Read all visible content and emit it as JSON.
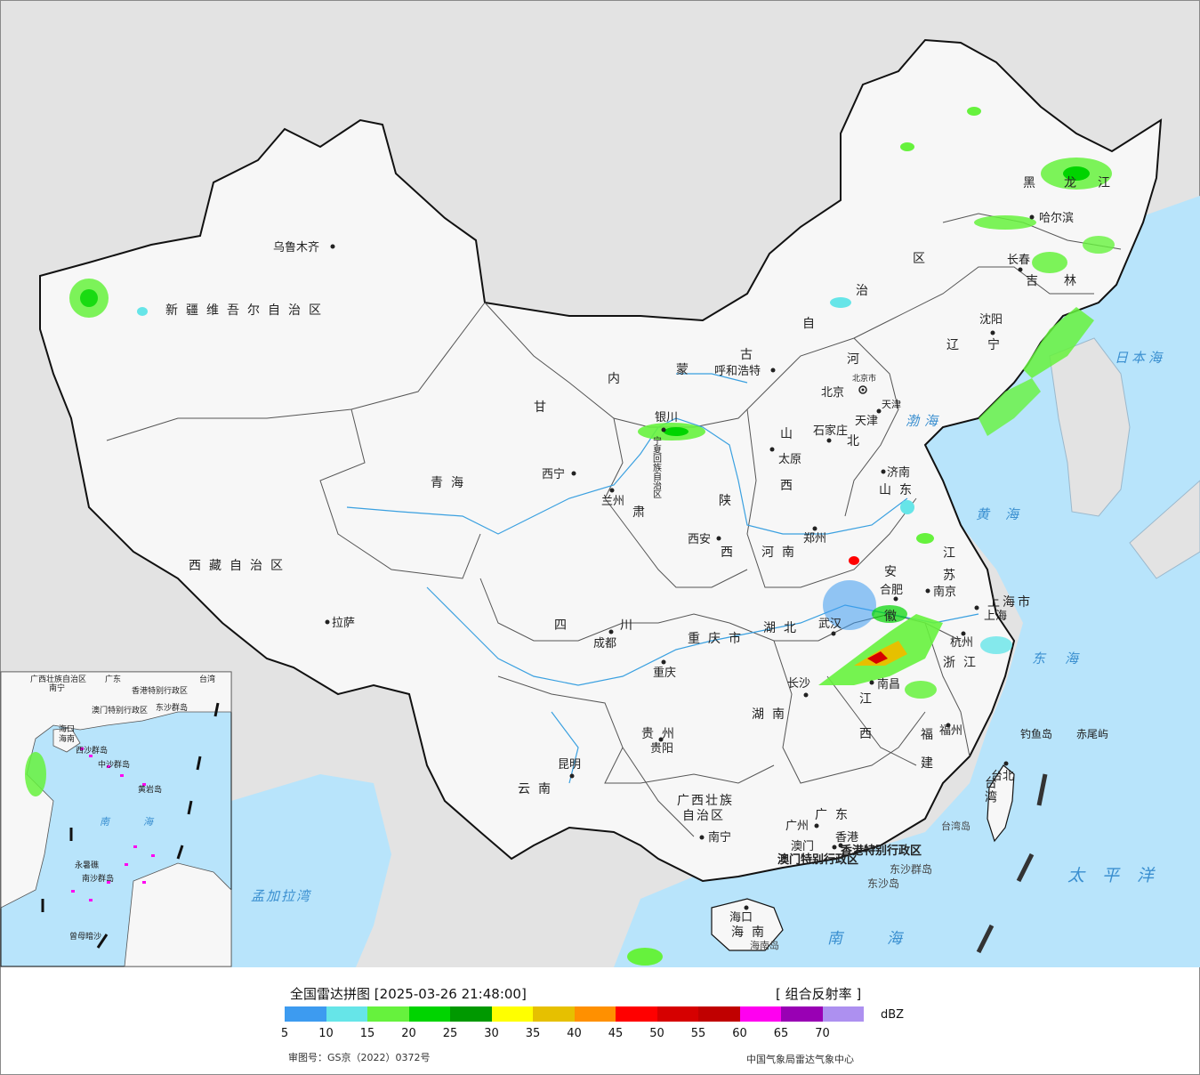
{
  "map": {
    "title": "全国雷达拼图",
    "timestamp": "[2025-03-26 21:48:00]",
    "product": "[ 组合反射率 ]",
    "unit": "dBZ",
    "review_number": "审图号：GS京（2022）0372号",
    "organization": "中国气象局雷达气象中心"
  },
  "legend": {
    "colors": [
      "#3d9bf0",
      "#66e5e8",
      "#66f23d",
      "#00d400",
      "#009900",
      "#ffff00",
      "#e6c000",
      "#ff9000",
      "#ff0000",
      "#d60000",
      "#c00000",
      "#ff00f0",
      "#9900b4",
      "#ad90f0"
    ],
    "ticks": [
      "5",
      "10",
      "15",
      "20",
      "25",
      "30",
      "35",
      "40",
      "45",
      "50",
      "55",
      "60",
      "65",
      "70"
    ]
  },
  "provinces": [
    {
      "name": "新疆维吾尔自治区"
    },
    {
      "name": "西藏自治区"
    },
    {
      "name": "青海"
    },
    {
      "name": "甘"
    },
    {
      "name": "肃"
    },
    {
      "name": "内"
    },
    {
      "name": "蒙"
    },
    {
      "name": "古"
    },
    {
      "name": "自"
    },
    {
      "name": "治"
    },
    {
      "name": "区"
    },
    {
      "name": "黑"
    },
    {
      "name": "龙"
    },
    {
      "name": "江"
    },
    {
      "name": "吉"
    },
    {
      "name": "林"
    },
    {
      "name": "辽"
    },
    {
      "name": "宁"
    },
    {
      "name": "河"
    },
    {
      "name": "北"
    },
    {
      "name": "山"
    },
    {
      "name": "西"
    },
    {
      "name": "陕"
    },
    {
      "name": "西"
    },
    {
      "name": "山东"
    },
    {
      "name": "河南"
    },
    {
      "name": "江"
    },
    {
      "name": "苏"
    },
    {
      "name": "安"
    },
    {
      "name": "徽"
    },
    {
      "name": "湖北"
    },
    {
      "name": "四"
    },
    {
      "name": "川"
    },
    {
      "name": "重庆市"
    },
    {
      "name": "湖南"
    },
    {
      "name": "江"
    },
    {
      "name": "西"
    },
    {
      "name": "浙江"
    },
    {
      "name": "福"
    },
    {
      "name": "建"
    },
    {
      "name": "贵州"
    },
    {
      "name": "云南"
    },
    {
      "name": "广西壮族"
    },
    {
      "name": "自治区"
    },
    {
      "name": "广东"
    },
    {
      "name": "海南"
    },
    {
      "name": "台湾"
    },
    {
      "name": "上海市"
    },
    {
      "name": "宁夏回族自治区"
    },
    {
      "name": "香港特别行政区"
    },
    {
      "name": "澳门特别行政区"
    },
    {
      "name": "北京市"
    },
    {
      "name": "天津"
    }
  ],
  "cities": [
    {
      "name": "乌鲁木齐"
    },
    {
      "name": "拉萨"
    },
    {
      "name": "西宁"
    },
    {
      "name": "兰州"
    },
    {
      "name": "银川"
    },
    {
      "name": "呼和浩特"
    },
    {
      "name": "北京"
    },
    {
      "name": "天津"
    },
    {
      "name": "石家庄"
    },
    {
      "name": "太原"
    },
    {
      "name": "哈尔滨"
    },
    {
      "name": "长春"
    },
    {
      "name": "沈阳"
    },
    {
      "name": "济南"
    },
    {
      "name": "郑州"
    },
    {
      "name": "西安"
    },
    {
      "name": "合肥"
    },
    {
      "name": "南京"
    },
    {
      "name": "上海"
    },
    {
      "name": "杭州"
    },
    {
      "name": "武汉"
    },
    {
      "name": "成都"
    },
    {
      "name": "重庆"
    },
    {
      "name": "长沙"
    },
    {
      "name": "南昌"
    },
    {
      "name": "福州"
    },
    {
      "name": "台北"
    },
    {
      "name": "贵阳"
    },
    {
      "name": "昆明"
    },
    {
      "name": "南宁"
    },
    {
      "name": "广州"
    },
    {
      "name": "澳门"
    },
    {
      "name": "香港"
    },
    {
      "name": "海口"
    }
  ],
  "seas": [
    {
      "name": "日本海"
    },
    {
      "name": "渤海"
    },
    {
      "name": "黄海"
    },
    {
      "name": "东海"
    },
    {
      "name": "太平洋"
    },
    {
      "name": "南海"
    },
    {
      "name": "孟加拉湾"
    }
  ],
  "islands": [
    {
      "name": "钓鱼岛"
    },
    {
      "name": "赤尾屿"
    },
    {
      "name": "台湾岛"
    },
    {
      "name": "东沙群岛"
    },
    {
      "name": "东沙岛"
    },
    {
      "name": "海南岛"
    }
  ],
  "inset": {
    "labels": [
      "广西壮族自治区",
      "南宁",
      "广东",
      "澳门特别行政区",
      "香港特别行政区",
      "台湾",
      "海口",
      "海南",
      "东沙群岛",
      "西沙群岛",
      "中沙群岛",
      "黄岩岛",
      "南沙群岛",
      "永暑礁",
      "曾母暗沙"
    ],
    "sea": "南海"
  }
}
